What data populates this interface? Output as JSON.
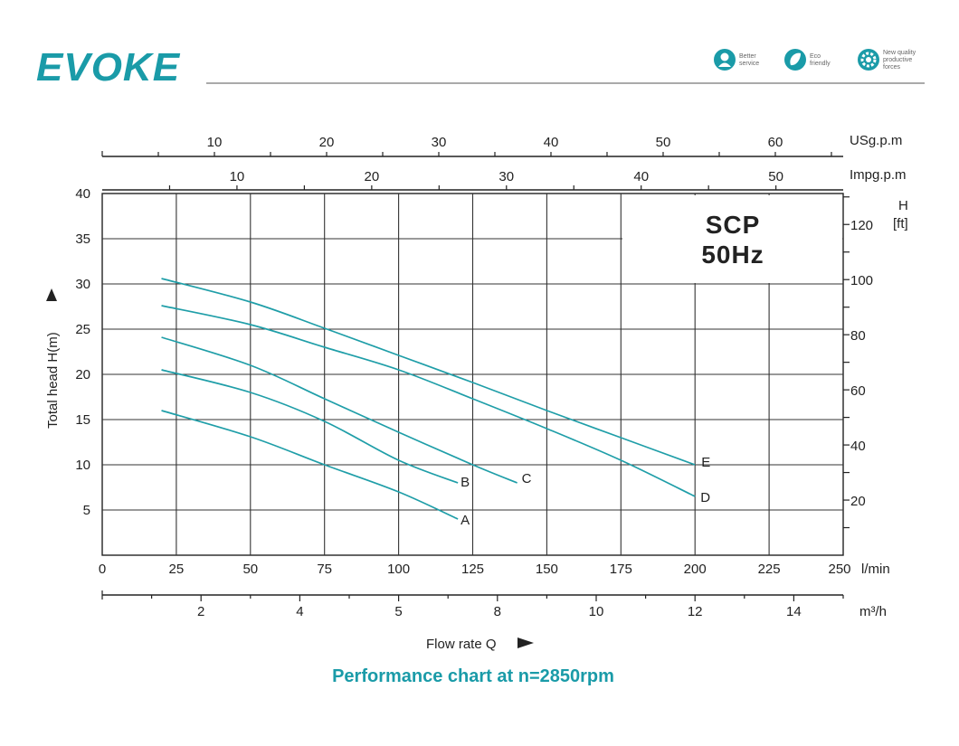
{
  "brand": {
    "logo_text": "EVOKE",
    "accent_color": "#1a9ba8"
  },
  "badges": [
    {
      "icon": "headset-person-icon",
      "text": [
        "Better",
        "service"
      ]
    },
    {
      "icon": "leaf-recycle-icon",
      "text": [
        "Eco",
        "friendly"
      ]
    },
    {
      "icon": "gear-icon",
      "text": [
        "New quality",
        "productive",
        "forces"
      ]
    }
  ],
  "caption": "Performance chart at n=2850rpm",
  "chart_data": {
    "type": "line",
    "model": [
      "SCP",
      "50Hz"
    ],
    "xlabel": "Flow  rate Q",
    "ylabel": "Total head H(m)",
    "x_unit": "l/min",
    "xlim": [
      0,
      250
    ],
    "x_ticks": [
      0,
      25,
      50,
      75,
      100,
      125,
      150,
      175,
      200,
      225,
      250
    ],
    "ylim": [
      0,
      40
    ],
    "y_ticks": [
      5,
      10,
      15,
      20,
      25,
      30,
      35,
      40
    ],
    "grid": true,
    "secondary_axes": {
      "usgpm": {
        "unit": "USg.p.m",
        "ticks": [
          10,
          20,
          30,
          40,
          50,
          60
        ]
      },
      "impgpm": {
        "unit": "Impg.p.m",
        "ticks": [
          10,
          20,
          30,
          40,
          50
        ]
      },
      "m3h": {
        "unit": "m³/h",
        "ticks": [
          2,
          4,
          5,
          8,
          10,
          12,
          14
        ]
      },
      "feet": {
        "unit_top": "H",
        "unit_bottom": "[ft]",
        "ticks": [
          20,
          40,
          60,
          80,
          100,
          120
        ]
      }
    },
    "series": [
      {
        "name": "A",
        "x": [
          20,
          50,
          75,
          100,
          120
        ],
        "y": [
          16,
          13.1,
          10,
          7,
          4
        ]
      },
      {
        "name": "B",
        "x": [
          20,
          50,
          75,
          100,
          120
        ],
        "y": [
          20.5,
          18,
          14.8,
          10.5,
          8
        ]
      },
      {
        "name": "C",
        "x": [
          20,
          50,
          75,
          100,
          125,
          140
        ],
        "y": [
          24.1,
          21,
          17.3,
          13.6,
          10,
          8
        ]
      },
      {
        "name": "D",
        "x": [
          20,
          50,
          75,
          100,
          125,
          150,
          175,
          200
        ],
        "y": [
          27.6,
          25.5,
          23,
          20.5,
          17.3,
          14,
          10.5,
          6.5
        ]
      },
      {
        "name": "E",
        "x": [
          20,
          50,
          75,
          100,
          125,
          150,
          175,
          200
        ],
        "y": [
          30.6,
          28,
          25.1,
          22.1,
          19.1,
          16,
          13,
          10
        ]
      }
    ]
  }
}
